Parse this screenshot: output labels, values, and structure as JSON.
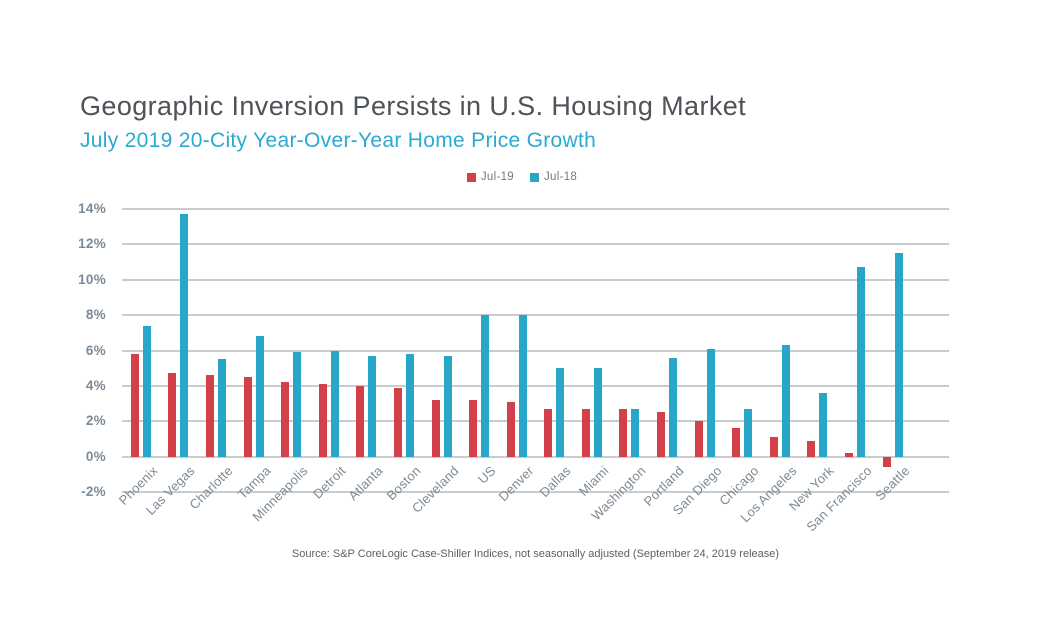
{
  "title": "Geographic Inversion Persists in U.S. Housing Market",
  "subtitle": "July 2019 20-City Year-Over-Year Home Price Growth",
  "source": "Source:  S&P CoreLogic Case-Shiller Indices, not seasonally adjusted (September 24, 2019 release)",
  "colors": {
    "jul19": "#d2404a",
    "jul18": "#27a6c8",
    "title_text": "#4d5358",
    "subtitle_text": "#2aaad2",
    "axis_text": "#7b8a96",
    "gridline": "#c9cccd",
    "source_text": "#5a6167",
    "background": "#ffffff"
  },
  "legend": [
    {
      "label": "Jul-19",
      "color_key": "jul19"
    },
    {
      "label": "Jul-18",
      "color_key": "jul18"
    }
  ],
  "chart_data": {
    "type": "bar",
    "title": "Geographic Inversion Persists in U.S. Housing Market",
    "subtitle": "July 2019 20-City Year-Over-Year Home Price Growth",
    "unit": "percent year-over-year home price growth",
    "categories": [
      "Phoenix",
      "Las Vegas",
      "Charlotte",
      "Tampa",
      "Minneapolis",
      "Detroit",
      "Atlanta",
      "Boston",
      "Cleveland",
      "US",
      "Denver",
      "Dallas",
      "Miami",
      "Washington",
      "Portland",
      "San Diego",
      "Chicago",
      "Los Angeles",
      "New York",
      "San Francisco",
      "Seattle"
    ],
    "series": [
      {
        "name": "Jul-19",
        "color": "#d2404a",
        "values": [
          5.8,
          4.7,
          4.6,
          4.5,
          4.2,
          4.1,
          4.0,
          3.9,
          3.2,
          3.2,
          3.1,
          2.7,
          2.7,
          2.7,
          2.5,
          2.0,
          1.6,
          1.1,
          0.9,
          0.2,
          -0.6
        ]
      },
      {
        "name": "Jul-18",
        "color": "#27a6c8",
        "values": [
          7.4,
          13.7,
          5.5,
          6.8,
          5.9,
          6.0,
          5.7,
          5.8,
          5.7,
          8.0,
          8.0,
          5.0,
          5.0,
          2.7,
          5.6,
          6.1,
          2.7,
          6.3,
          3.6,
          10.7,
          11.5
        ]
      }
    ],
    "xlabel": "",
    "ylabel": "",
    "y_ticks": [
      "14%",
      "12%",
      "10%",
      "8%",
      "6%",
      "4%",
      "2%",
      "0%",
      "-2%"
    ],
    "ylim": [
      -2,
      14
    ],
    "grid": true,
    "legend_position": "top-center",
    "x_tick_rotation": 45
  }
}
